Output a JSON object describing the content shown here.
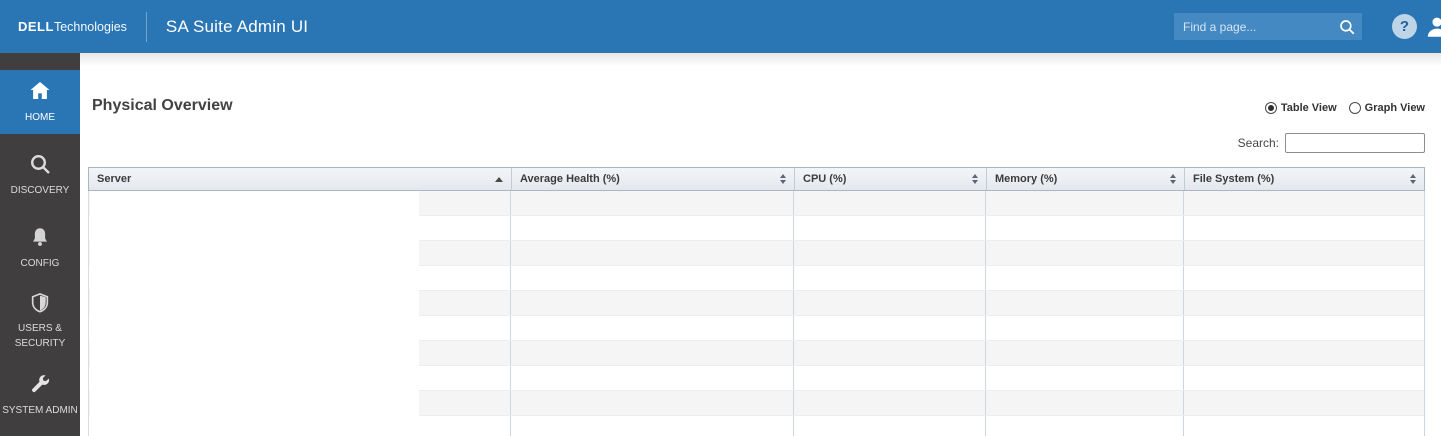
{
  "app": {
    "brand": "DELL",
    "brand_suffix": "Technologies",
    "title": "SA Suite Admin UI",
    "find_placeholder": "Find a page...",
    "help_glyph": "?"
  },
  "sidebar": {
    "items": [
      {
        "label": "HOME",
        "icon": "home-icon",
        "active": true
      },
      {
        "label": "DISCOVERY",
        "icon": "magnifier-icon",
        "active": false
      },
      {
        "label": "CONFIG",
        "icon": "bell-icon",
        "active": false
      },
      {
        "label": "USERS & SECURITY",
        "icon": "shield-icon",
        "active": false
      },
      {
        "label": "SYSTEM ADMIN",
        "icon": "wrench-icon",
        "active": false
      }
    ]
  },
  "main": {
    "page_title": "Physical Overview",
    "view_toggle": {
      "options": [
        {
          "label": "Table View",
          "selected": true
        },
        {
          "label": "Graph View",
          "selected": false
        }
      ]
    },
    "search_label": "Search:",
    "search_value": ""
  },
  "table": {
    "columns": [
      {
        "label": "Server",
        "sort": "asc"
      },
      {
        "label": "Average Health (%)",
        "sort": "both"
      },
      {
        "label": "CPU (%)",
        "sort": "both"
      },
      {
        "label": "Memory (%)",
        "sort": "both"
      },
      {
        "label": "File System (%)",
        "sort": "both"
      }
    ],
    "rows": [],
    "visible_empty_rows": 10
  },
  "colors": {
    "appbar_blue": "#2a76b5",
    "search_box_blue": "#4589c2",
    "sidebar_gray": "#403e3e",
    "active_item_blue": "#2a76b5",
    "table_header_border": "#a9b6c6",
    "row_stripe": "#f5f5f6"
  }
}
